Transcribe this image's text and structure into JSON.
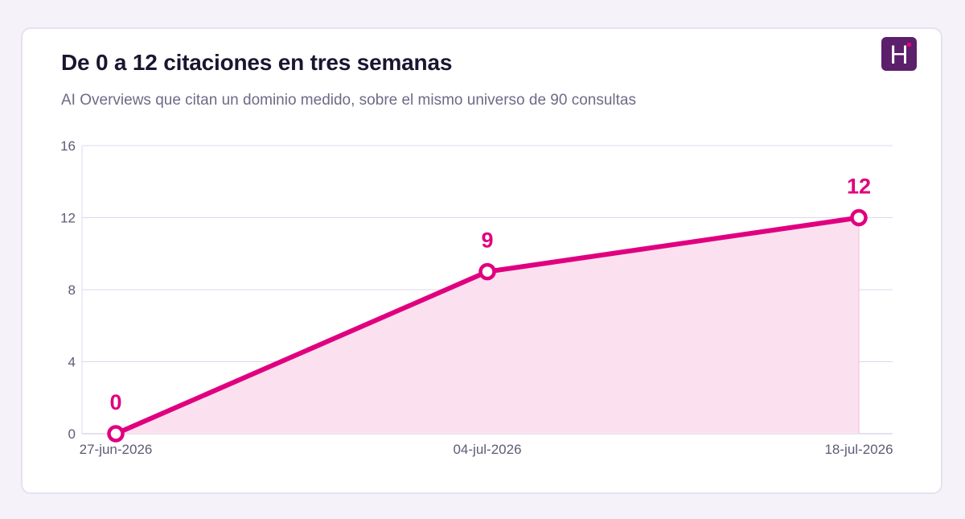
{
  "header": {
    "title": "De 0 a 12 citaciones en tres semanas",
    "subtitle": "AI Overviews que citan un dominio medido, sobre el mismo universo de 90 consultas"
  },
  "logo": {
    "letter": "H",
    "bg_color": "#5b1f6b",
    "dot_color": "#e6007e"
  },
  "colors": {
    "line": "#e0007f",
    "area": "#fbe1ef",
    "grid": "#dcd8ee",
    "axis_text": "#5f5a76"
  },
  "chart_data": {
    "type": "line",
    "x": [
      "27-jun-2026",
      "04-jul-2026",
      "18-jul-2026"
    ],
    "values": [
      0,
      9,
      12
    ],
    "data_labels": [
      "0",
      "9",
      "12"
    ],
    "ylim": [
      0,
      16
    ],
    "yticks": [
      "0",
      "4",
      "8",
      "12",
      "16"
    ],
    "grid": true,
    "xlabel": "",
    "ylabel": ""
  }
}
